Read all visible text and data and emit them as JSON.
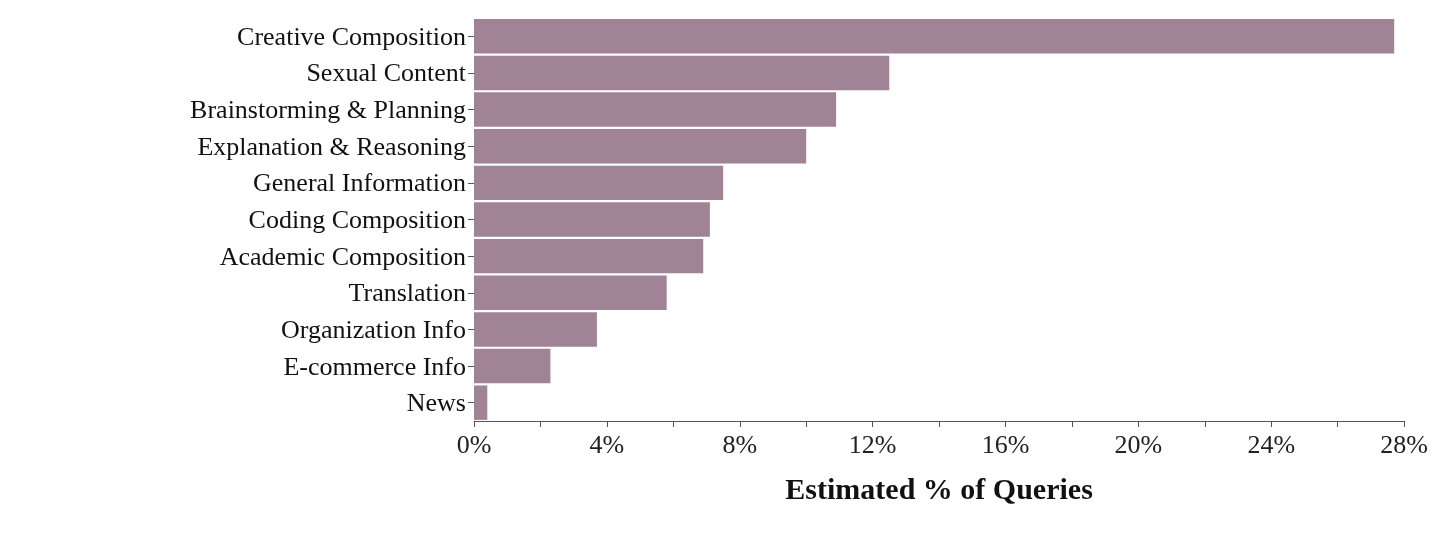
{
  "chart_data": {
    "type": "bar",
    "orientation": "horizontal",
    "xlabel": "Estimated % of Queries",
    "categories": [
      "Creative Composition",
      "Sexual Content",
      "Brainstorming & Planning",
      "Explanation & Reasoning",
      "General Information",
      "Coding Composition",
      "Academic Composition",
      "Translation",
      "Organization Info",
      "E-commerce Info",
      "News"
    ],
    "values": [
      27.7,
      12.5,
      10.9,
      10.0,
      7.5,
      7.1,
      6.9,
      5.8,
      3.7,
      2.3,
      0.4
    ],
    "color": "#a08394",
    "xlim": [
      0,
      28
    ],
    "xticks": [
      {
        "value": 0,
        "label": "0%"
      },
      {
        "value": 2,
        "label": null
      },
      {
        "value": 4,
        "label": "4%"
      },
      {
        "value": 6,
        "label": null
      },
      {
        "value": 8,
        "label": "8%"
      },
      {
        "value": 10,
        "label": null
      },
      {
        "value": 12,
        "label": "12%"
      },
      {
        "value": 14,
        "label": null
      },
      {
        "value": 16,
        "label": "16%"
      },
      {
        "value": 18,
        "label": null
      },
      {
        "value": 20,
        "label": "20%"
      },
      {
        "value": 22,
        "label": null
      },
      {
        "value": 24,
        "label": "24%"
      },
      {
        "value": 26,
        "label": null
      },
      {
        "value": 28,
        "label": "28%"
      }
    ],
    "grid": false
  }
}
